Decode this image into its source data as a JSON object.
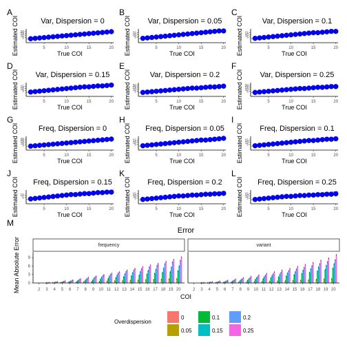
{
  "figure": {
    "background": "#ffffff",
    "point_color": "#0000ff",
    "diagonal_color": "#9e9e9e"
  },
  "chart_data": [
    {
      "letter": "A",
      "type": "scatter",
      "title": "Var, Dispersion = 0",
      "xlabel": "True COI",
      "ylabel": "Estimated COI",
      "xticks": [
        "5",
        "10",
        "15",
        "20"
      ],
      "yticks": [
        "5",
        "10",
        "15",
        "20"
      ],
      "xlim": [
        1,
        20.5
      ],
      "ylim": [
        -8,
        34
      ],
      "x": [
        2,
        3,
        4,
        5,
        6,
        7,
        8,
        9,
        10,
        11,
        12,
        13,
        14,
        15,
        16,
        17,
        18,
        19,
        20
      ],
      "y": [
        2,
        3,
        4,
        5,
        6,
        7,
        8,
        9,
        10,
        11,
        12,
        13,
        14,
        15,
        16,
        17,
        18,
        19,
        20
      ]
    },
    {
      "letter": "B",
      "type": "scatter",
      "title": "Var, Dispersion = 0.05",
      "xlabel": "True COI",
      "ylabel": "Estimated COI",
      "xticks": [
        "5",
        "10",
        "15",
        "20"
      ],
      "yticks": [
        "5",
        "10",
        "15"
      ],
      "xlim": [
        1,
        20.5
      ],
      "ylim": [
        -8,
        30
      ],
      "x": [
        2,
        3,
        4,
        5,
        6,
        7,
        8,
        9,
        10,
        11,
        12,
        13,
        14,
        15,
        16,
        17,
        18,
        19,
        20
      ],
      "y": [
        2,
        3,
        4,
        5,
        6,
        7,
        8,
        9,
        10,
        11,
        12,
        13,
        14,
        15,
        16,
        17,
        18,
        19,
        19
      ]
    },
    {
      "letter": "C",
      "type": "scatter",
      "title": "Var, Dispersion = 0.1",
      "xlabel": "True COI",
      "ylabel": "Estimated COI",
      "xticks": [
        "5",
        "10",
        "15",
        "20"
      ],
      "yticks": [
        "5",
        "10",
        "15"
      ],
      "xlim": [
        1,
        20.5
      ],
      "ylim": [
        -8,
        30
      ],
      "x": [
        2,
        3,
        4,
        5,
        6,
        7,
        8,
        9,
        10,
        11,
        12,
        13,
        14,
        15,
        16,
        17,
        18,
        19,
        20
      ],
      "y": [
        2,
        3,
        4,
        5,
        6,
        7,
        8,
        9,
        10,
        11,
        12,
        13,
        14,
        15,
        15,
        16,
        17,
        18,
        18
      ]
    },
    {
      "letter": "D",
      "type": "scatter",
      "title": "Var, Dispersion = 0.15",
      "xlabel": "True COI",
      "ylabel": "Estimated COI",
      "xticks": [
        "5",
        "10",
        "15",
        "20"
      ],
      "yticks": [
        "5",
        "10",
        "15"
      ],
      "xlim": [
        1,
        20.5
      ],
      "ylim": [
        -8,
        30
      ],
      "x": [
        2,
        3,
        4,
        5,
        6,
        7,
        8,
        9,
        10,
        11,
        12,
        13,
        14,
        15,
        16,
        17,
        18,
        19,
        20
      ],
      "y": [
        2,
        3,
        4,
        5,
        6,
        7,
        8,
        9,
        10,
        11,
        12,
        13,
        14,
        14,
        15,
        16,
        16,
        17,
        18
      ]
    },
    {
      "letter": "E",
      "type": "scatter",
      "title": "Var, Dispersion = 0.2",
      "xlabel": "True COI",
      "ylabel": "Estimated COI",
      "xticks": [
        "5",
        "10",
        "15",
        "20"
      ],
      "yticks": [
        "5",
        "10",
        "15",
        "20"
      ],
      "xlim": [
        1,
        20.5
      ],
      "ylim": [
        -8,
        34
      ],
      "x": [
        2,
        3,
        4,
        5,
        6,
        7,
        8,
        9,
        10,
        11,
        12,
        13,
        14,
        15,
        16,
        17,
        18,
        19,
        20
      ],
      "y": [
        2,
        3,
        4,
        5,
        6,
        7,
        8,
        9,
        10,
        11,
        12,
        13,
        13,
        14,
        15,
        16,
        16,
        17,
        18
      ]
    },
    {
      "letter": "F",
      "type": "scatter",
      "title": "Var, Dispersion = 0.25",
      "xlabel": "True COI",
      "ylabel": "Estimated COI",
      "xticks": [
        "5",
        "10",
        "15",
        "20"
      ],
      "yticks": [
        "5",
        "10",
        "15",
        "20"
      ],
      "xlim": [
        1,
        20.5
      ],
      "ylim": [
        -8,
        34
      ],
      "x": [
        2,
        3,
        4,
        5,
        6,
        7,
        8,
        9,
        10,
        11,
        12,
        13,
        14,
        15,
        16,
        17,
        18,
        19,
        20
      ],
      "y": [
        2,
        3,
        4,
        5,
        6,
        7,
        8,
        9,
        10,
        11,
        12,
        12,
        13,
        14,
        15,
        15,
        16,
        17,
        17
      ]
    },
    {
      "letter": "G",
      "type": "scatter",
      "title": "Freq, Dispersion = 0",
      "xlabel": "True COI",
      "ylabel": "Estimated COI",
      "xticks": [
        "5",
        "10",
        "15",
        "20"
      ],
      "yticks": [
        "5",
        "10",
        "15",
        "20"
      ],
      "xlim": [
        1,
        20.5
      ],
      "ylim": [
        -8,
        34
      ],
      "x": [
        2,
        3,
        4,
        5,
        6,
        7,
        8,
        9,
        10,
        11,
        12,
        13,
        14,
        15,
        16,
        17,
        18,
        19,
        20
      ],
      "y": [
        2,
        3,
        4,
        5,
        6,
        7,
        8,
        9,
        10,
        11,
        12,
        13,
        14,
        15,
        16,
        17,
        18,
        19,
        20
      ]
    },
    {
      "letter": "H",
      "type": "scatter",
      "title": "Freq, Dispersion = 0.05",
      "xlabel": "True COI",
      "ylabel": "Estimated COI",
      "xticks": [
        "5",
        "10",
        "15",
        "20"
      ],
      "yticks": [
        "5",
        "10",
        "15"
      ],
      "xlim": [
        1,
        20.5
      ],
      "ylim": [
        -8,
        30
      ],
      "x": [
        2,
        3,
        4,
        5,
        6,
        7,
        8,
        9,
        10,
        11,
        12,
        13,
        14,
        15,
        16,
        17,
        18,
        19,
        20
      ],
      "y": [
        2,
        3,
        4,
        5,
        6,
        7,
        8,
        9,
        10,
        11,
        12,
        13,
        14,
        15,
        15,
        16,
        17,
        18,
        19
      ]
    },
    {
      "letter": "I",
      "type": "scatter",
      "title": "Freq, Dispersion = 0.1",
      "xlabel": "True COI",
      "ylabel": "Estimated COI",
      "xticks": [
        "5",
        "10",
        "15",
        "20"
      ],
      "yticks": [
        "5",
        "10",
        "15"
      ],
      "xlim": [
        1,
        20.5
      ],
      "ylim": [
        -8,
        30
      ],
      "x": [
        2,
        3,
        4,
        5,
        6,
        7,
        8,
        9,
        10,
        11,
        12,
        13,
        14,
        15,
        16,
        17,
        18,
        19,
        20
      ],
      "y": [
        2,
        3,
        4,
        5,
        6,
        7,
        8,
        9,
        10,
        11,
        12,
        13,
        14,
        14,
        15,
        16,
        17,
        17,
        18
      ]
    },
    {
      "letter": "J",
      "type": "scatter",
      "title": "Freq, Dispersion = 0.15",
      "xlabel": "True COI",
      "ylabel": "Estimated COI",
      "xticks": [
        "5",
        "10",
        "15",
        "20"
      ],
      "yticks": [
        "5",
        "10"
      ],
      "xlim": [
        1,
        20.5
      ],
      "ylim": [
        -8,
        26
      ],
      "x": [
        2,
        3,
        4,
        5,
        6,
        7,
        8,
        9,
        10,
        11,
        12,
        13,
        14,
        15,
        16,
        17,
        18,
        19,
        20
      ],
      "y": [
        2,
        3,
        4,
        5,
        6,
        7,
        8,
        9,
        10,
        11,
        11,
        12,
        13,
        13,
        14,
        15,
        15,
        16,
        16
      ]
    },
    {
      "letter": "K",
      "type": "scatter",
      "title": "Freq, Dispersion = 0.2",
      "xlabel": "True COI",
      "ylabel": "Estimated COI",
      "xticks": [
        "5",
        "10",
        "15",
        "20"
      ],
      "yticks": [
        "5",
        "10",
        "15"
      ],
      "xlim": [
        1,
        20.5
      ],
      "ylim": [
        -8,
        30
      ],
      "x": [
        2,
        3,
        4,
        5,
        6,
        7,
        8,
        9,
        10,
        11,
        12,
        13,
        14,
        15,
        16,
        17,
        18,
        19,
        20
      ],
      "y": [
        2,
        3,
        4,
        5,
        6,
        7,
        8,
        9,
        10,
        10,
        11,
        12,
        12,
        13,
        14,
        14,
        15,
        15,
        16
      ]
    },
    {
      "letter": "L",
      "type": "scatter",
      "title": "Freq, Dispersion = 0.25",
      "xlabel": "True COI",
      "ylabel": "Estimated COI",
      "xticks": [
        "5",
        "10",
        "15",
        "20"
      ],
      "yticks": [
        "5",
        "10",
        "15"
      ],
      "xlim": [
        1,
        20.5
      ],
      "ylim": [
        -8,
        30
      ],
      "x": [
        2,
        3,
        4,
        5,
        6,
        7,
        8,
        9,
        10,
        11,
        12,
        13,
        14,
        15,
        16,
        17,
        18,
        19,
        20
      ],
      "y": [
        2,
        3,
        4,
        5,
        6,
        7,
        8,
        9,
        9,
        10,
        11,
        11,
        12,
        12,
        13,
        13,
        14,
        14,
        15
      ]
    },
    {
      "letter": "M",
      "type": "bar",
      "title": "Error",
      "xlabel": "COI",
      "ylabel": "Mean Absolute Error",
      "ylim": [
        0,
        11
      ],
      "yticks": [
        "0",
        "3",
        "6",
        "9"
      ],
      "categories": [
        "2",
        "3",
        "4",
        "5",
        "6",
        "7",
        "8",
        "9",
        "10",
        "11",
        "12",
        "13",
        "14",
        "15",
        "16",
        "17",
        "18",
        "19",
        "20"
      ],
      "legend": {
        "title": "Overdispersion",
        "position": "bottom"
      },
      "facets": [
        {
          "name": "frequency",
          "series": [
            {
              "name": "0",
              "color": "#f8766d",
              "values": [
                0,
                0,
                0,
                0,
                0,
                0,
                0,
                0,
                0,
                0,
                0,
                0,
                0,
                0,
                0,
                0,
                0,
                0,
                0
              ]
            },
            {
              "name": "0.05",
              "color": "#b79f00",
              "values": [
                0,
                0,
                0.05,
                0.1,
                0.15,
                0.2,
                0.3,
                0.4,
                0.5,
                0.6,
                0.7,
                0.8,
                0.9,
                1.0,
                1.1,
                1.2,
                1.3,
                1.4,
                1.5
              ]
            },
            {
              "name": "0.1",
              "color": "#00ba38",
              "values": [
                0,
                0.02,
                0.1,
                0.2,
                0.4,
                0.6,
                0.8,
                1.0,
                1.3,
                1.6,
                1.9,
                2.2,
                2.5,
                2.8,
                3.1,
                3.4,
                3.7,
                4.0,
                4.3
              ]
            },
            {
              "name": "0.15",
              "color": "#00bfc4",
              "values": [
                0,
                0.03,
                0.2,
                0.4,
                0.6,
                0.9,
                1.2,
                1.6,
                2.0,
                2.4,
                2.8,
                3.2,
                3.6,
                4.0,
                4.4,
                4.8,
                5.2,
                5.6,
                6.0
              ]
            },
            {
              "name": "0.2",
              "color": "#619cff",
              "values": [
                0,
                0.05,
                0.3,
                0.5,
                0.8,
                1.2,
                1.6,
                2.0,
                2.5,
                3.0,
                3.5,
                4.0,
                4.5,
                5.0,
                5.6,
                6.2,
                6.8,
                7.4,
                8.0
              ]
            },
            {
              "name": "0.25",
              "color": "#f564e3",
              "values": [
                0,
                0.08,
                0.4,
                0.7,
                1.0,
                1.4,
                1.9,
                2.4,
                2.9,
                3.4,
                3.9,
                4.5,
                5.1,
                5.7,
                6.3,
                6.9,
                7.6,
                8.3,
                9.2
              ]
            }
          ]
        },
        {
          "name": "variant",
          "series": [
            {
              "name": "0",
              "color": "#f8766d",
              "values": [
                0,
                0,
                0,
                0,
                0,
                0,
                0,
                0,
                0,
                0,
                0,
                0,
                0,
                0,
                0,
                0,
                0,
                0,
                0
              ]
            },
            {
              "name": "0.05",
              "color": "#b79f00",
              "values": [
                0,
                0,
                0.03,
                0.05,
                0.1,
                0.15,
                0.2,
                0.25,
                0.35,
                0.45,
                0.55,
                0.65,
                0.75,
                0.85,
                0.95,
                1.05,
                1.2,
                1.35,
                1.5
              ]
            },
            {
              "name": "0.1",
              "color": "#00ba38",
              "values": [
                0,
                0.02,
                0.1,
                0.2,
                0.3,
                0.5,
                0.7,
                0.9,
                1.2,
                1.5,
                1.8,
                2.1,
                2.5,
                2.9,
                3.3,
                3.7,
                4.2,
                4.7,
                5.2
              ]
            },
            {
              "name": "0.15",
              "color": "#00bfc4",
              "values": [
                0,
                0.03,
                0.2,
                0.3,
                0.5,
                0.8,
                1.1,
                1.4,
                1.8,
                2.2,
                2.6,
                3.0,
                3.5,
                4.0,
                4.5,
                5.0,
                5.6,
                6.2,
                6.8
              ]
            },
            {
              "name": "0.2",
              "color": "#619cff",
              "values": [
                0,
                0.05,
                0.25,
                0.45,
                0.7,
                1.0,
                1.4,
                1.8,
                2.2,
                2.7,
                3.2,
                3.7,
                4.3,
                4.9,
                5.5,
                6.1,
                6.8,
                7.5,
                8.2
              ]
            },
            {
              "name": "0.25",
              "color": "#f564e3",
              "values": [
                0,
                0.08,
                0.35,
                0.6,
                0.9,
                1.3,
                1.8,
                2.3,
                2.8,
                3.3,
                3.9,
                4.5,
                5.1,
                5.8,
                6.5,
                7.2,
                8.0,
                8.8,
                10.0
              ]
            }
          ]
        }
      ]
    }
  ]
}
